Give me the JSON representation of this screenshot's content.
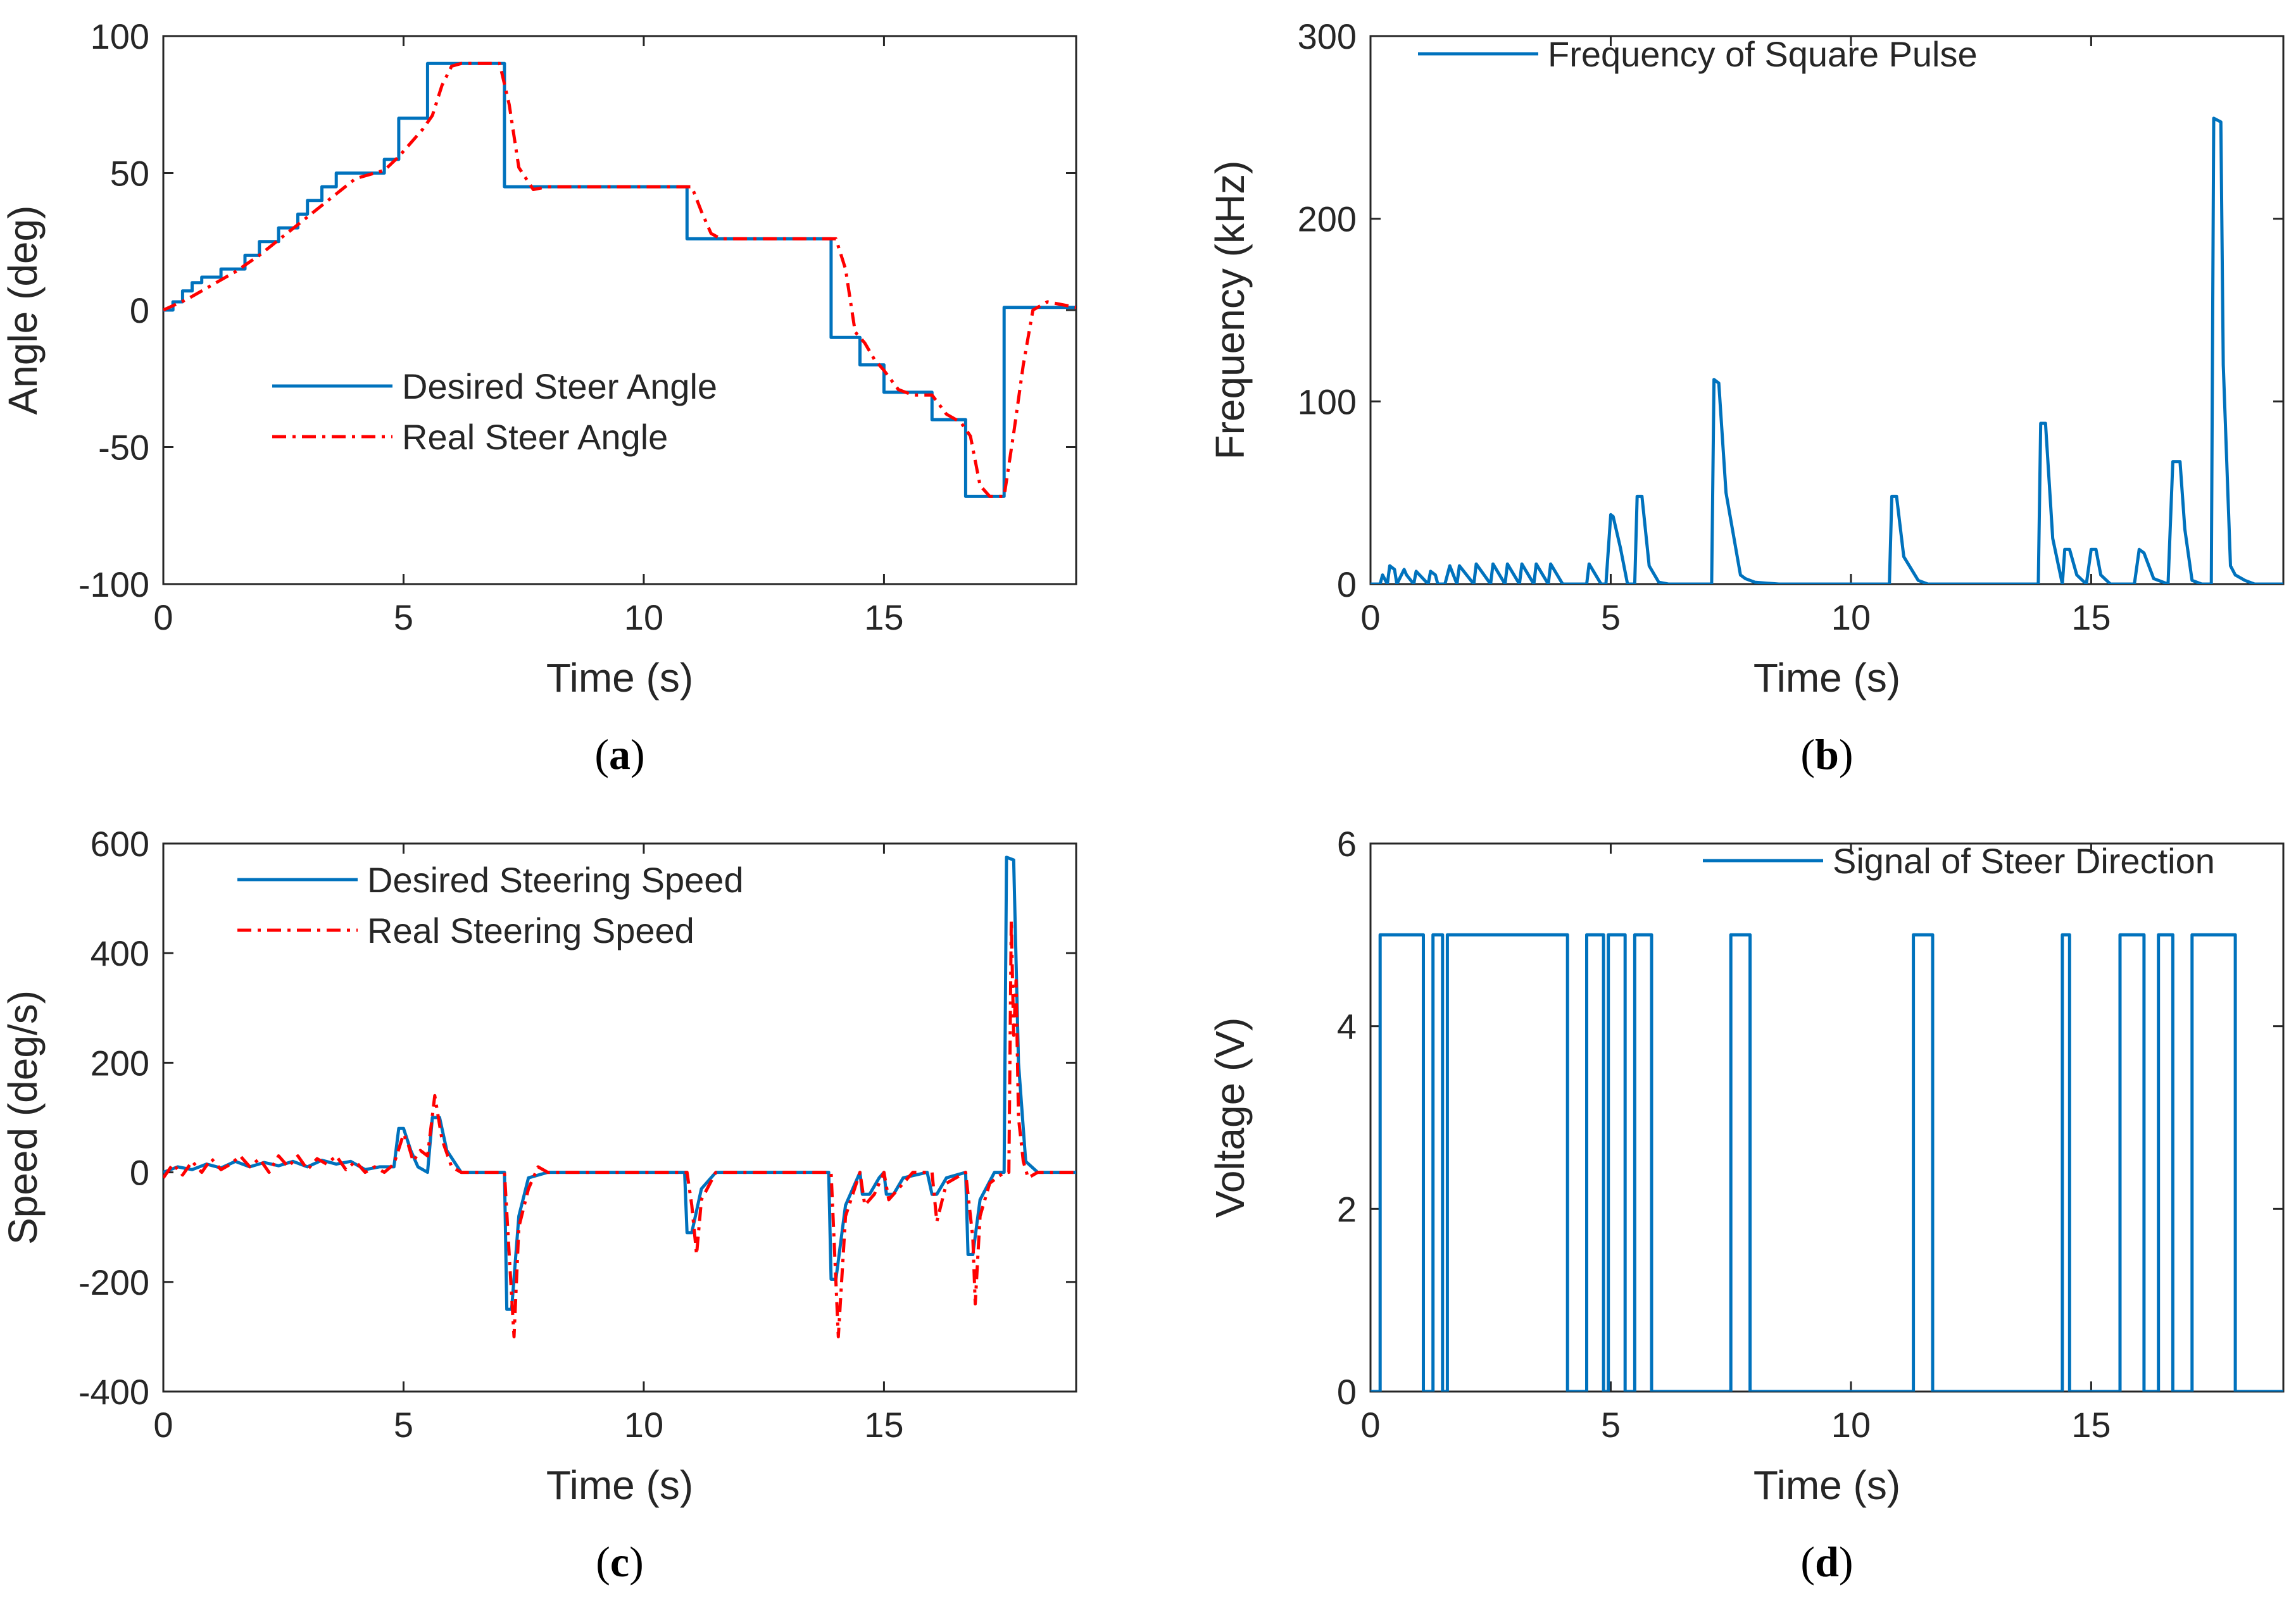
{
  "chart_data": [
    {
      "id": "a",
      "type": "line",
      "caption_letter": "a",
      "xlabel": "Time (s)",
      "ylabel": "Angle (deg)",
      "xlim": [
        0,
        19
      ],
      "ylim": [
        -100,
        100
      ],
      "xticks": [
        0,
        5,
        10,
        15
      ],
      "yticks": [
        -100,
        -50,
        0,
        50,
        100
      ],
      "legend_position": "lower-left",
      "series": [
        {
          "name": "Desired Steer Angle",
          "color": "#0072BD",
          "style": "solid",
          "x": [
            0,
            0.2,
            0.2,
            0.4,
            0.4,
            0.6,
            0.6,
            0.8,
            0.8,
            1.2,
            1.2,
            1.7,
            1.7,
            2.0,
            2.0,
            2.4,
            2.4,
            2.8,
            2.8,
            3.0,
            3.0,
            3.3,
            3.3,
            3.6,
            3.6,
            3.8,
            3.8,
            4.6,
            4.6,
            4.9,
            4.9,
            5.5,
            5.5,
            7.1,
            7.1,
            10.9,
            10.9,
            13.9,
            13.9,
            14.5,
            14.5,
            15.0,
            15.0,
            16.0,
            16.0,
            16.7,
            16.7,
            17.5,
            17.5,
            19.0
          ],
          "y": [
            0,
            0,
            3,
            3,
            7,
            7,
            10,
            10,
            12,
            12,
            15,
            15,
            20,
            20,
            25,
            25,
            30,
            30,
            35,
            35,
            40,
            40,
            45,
            45,
            50,
            50,
            50,
            50,
            55,
            55,
            70,
            70,
            90,
            90,
            45,
            45,
            26,
            26,
            -10,
            -10,
            -20,
            -20,
            -30,
            -30,
            -40,
            -40,
            -68,
            -68,
            1,
            1
          ]
        },
        {
          "name": "Real Steer Angle",
          "color": "#FF0000",
          "style": "dashdot",
          "x": [
            0,
            0.5,
            1.0,
            1.5,
            2.0,
            2.5,
            3.0,
            3.5,
            4.0,
            4.6,
            4.9,
            5.1,
            5.4,
            5.6,
            5.8,
            6.0,
            6.2,
            7.0,
            7.2,
            7.4,
            7.7,
            8.0,
            11.0,
            11.2,
            11.4,
            11.6,
            12.0,
            14.0,
            14.2,
            14.4,
            14.6,
            14.8,
            15.0,
            15.3,
            15.6,
            16.0,
            16.3,
            16.6,
            16.8,
            17.0,
            17.2,
            17.5,
            17.7,
            17.9,
            18.1,
            18.4,
            19.0
          ],
          "y": [
            0,
            4,
            9,
            14,
            20,
            27,
            34,
            41,
            48,
            51,
            56,
            60,
            66,
            71,
            82,
            89,
            90,
            90,
            75,
            52,
            44,
            45,
            45,
            36,
            28,
            26,
            26,
            26,
            15,
            -8,
            -12,
            -18,
            -22,
            -29,
            -31,
            -31,
            -38,
            -41,
            -46,
            -64,
            -68,
            -68,
            -45,
            -20,
            0,
            3,
            1
          ]
        }
      ]
    },
    {
      "id": "b",
      "type": "line",
      "caption_letter": "b",
      "xlabel": "Time (s)",
      "ylabel": "Frequency (kHz)",
      "xlim": [
        0,
        19
      ],
      "ylim": [
        0,
        300
      ],
      "xticks": [
        0,
        5,
        10,
        15
      ],
      "yticks": [
        0,
        100,
        200,
        300
      ],
      "legend_position": "top-left",
      "series": [
        {
          "name": "Frequency of Square Pulse",
          "color": "#0072BD",
          "style": "solid",
          "x": [
            0,
            0.2,
            0.25,
            0.35,
            0.4,
            0.5,
            0.55,
            0.7,
            0.75,
            0.9,
            0.95,
            1.2,
            1.25,
            1.35,
            1.4,
            1.55,
            1.65,
            1.8,
            1.85,
            2.15,
            2.2,
            2.5,
            2.55,
            2.8,
            2.85,
            3.1,
            3.15,
            3.4,
            3.45,
            3.7,
            3.75,
            4.0,
            4.1,
            4.5,
            4.55,
            4.8,
            4.9,
            5.0,
            5.05,
            5.2,
            5.35,
            5.5,
            5.55,
            5.65,
            5.8,
            6.0,
            6.2,
            7.1,
            7.15,
            7.25,
            7.4,
            7.7,
            7.8,
            8.0,
            8.5,
            10.8,
            10.85,
            10.95,
            11.1,
            11.4,
            11.6,
            13.9,
            13.95,
            14.05,
            14.2,
            14.4,
            14.45,
            14.55,
            14.7,
            14.9,
            15.0,
            15.1,
            15.2,
            15.4,
            15.5,
            15.9,
            16.0,
            16.1,
            16.3,
            16.6,
            16.7,
            16.85,
            16.95,
            17.1,
            17.3,
            17.5,
            17.55,
            17.7,
            17.75,
            17.9,
            18.0,
            18.2,
            18.4,
            19.0
          ],
          "y": [
            0,
            0,
            5,
            0,
            10,
            8,
            0,
            8,
            5,
            0,
            7,
            0,
            7,
            5,
            0,
            0,
            10,
            0,
            10,
            0,
            11,
            0,
            11,
            0,
            11,
            0,
            11,
            0,
            11,
            0,
            11,
            0,
            0,
            0,
            11,
            0,
            0,
            38,
            37,
            20,
            0,
            0,
            48,
            48,
            10,
            1,
            0,
            0,
            112,
            110,
            50,
            5,
            3,
            1,
            0,
            0,
            48,
            48,
            15,
            2,
            0,
            0,
            88,
            88,
            25,
            0,
            19,
            19,
            5,
            0,
            19,
            19,
            5,
            0,
            0,
            0,
            19,
            17,
            3,
            0,
            67,
            67,
            30,
            2,
            0,
            0,
            255,
            253,
            120,
            10,
            5,
            2,
            0,
            0
          ]
        }
      ]
    },
    {
      "id": "c",
      "type": "line",
      "caption_letter": "c",
      "xlabel": "Time (s)",
      "ylabel": "Speed (deg/s)",
      "xlim": [
        0,
        19
      ],
      "ylim": [
        -400,
        600
      ],
      "xticks": [
        0,
        5,
        10,
        15
      ],
      "yticks": [
        -400,
        -200,
        0,
        200,
        400,
        600
      ],
      "legend_position": "top-left",
      "series": [
        {
          "name": "Desired Steering Speed",
          "color": "#0072BD",
          "style": "solid",
          "x": [
            0,
            0.3,
            0.6,
            0.9,
            1.2,
            1.5,
            1.8,
            2.1,
            2.4,
            2.7,
            3.0,
            3.3,
            3.6,
            3.9,
            4.2,
            4.5,
            4.8,
            4.9,
            5.0,
            5.15,
            5.3,
            5.5,
            5.6,
            5.75,
            5.9,
            6.2,
            7.1,
            7.15,
            7.25,
            7.4,
            7.6,
            8.0,
            10.85,
            10.9,
            11.0,
            11.2,
            11.5,
            13.85,
            13.9,
            14.0,
            14.2,
            14.5,
            14.55,
            14.7,
            14.9,
            15.0,
            15.05,
            15.2,
            15.4,
            15.9,
            16.0,
            16.1,
            16.3,
            16.7,
            16.75,
            16.85,
            17.0,
            17.3,
            17.5,
            17.55,
            17.7,
            17.8,
            17.95,
            18.2,
            19.0
          ],
          "y": [
            0,
            10,
            5,
            15,
            8,
            20,
            10,
            18,
            12,
            20,
            10,
            22,
            15,
            20,
            5,
            10,
            10,
            80,
            80,
            40,
            10,
            0,
            100,
            100,
            40,
            0,
            0,
            -250,
            -250,
            -80,
            -10,
            0,
            0,
            -110,
            -110,
            -30,
            0,
            0,
            -195,
            -195,
            -60,
            0,
            -40,
            -40,
            -10,
            0,
            -40,
            -40,
            -10,
            0,
            -40,
            -40,
            -10,
            0,
            -150,
            -150,
            -50,
            0,
            0,
            575,
            570,
            200,
            20,
            0,
            0
          ]
        },
        {
          "name": "Real Steering Speed",
          "color": "#FF0000",
          "style": "dashdot",
          "x": [
            0,
            0.2,
            0.4,
            0.6,
            0.8,
            1.0,
            1.2,
            1.4,
            1.6,
            1.8,
            2.0,
            2.2,
            2.4,
            2.6,
            2.8,
            3.0,
            3.2,
            3.4,
            3.6,
            3.8,
            4.0,
            4.2,
            4.4,
            4.6,
            4.8,
            5.0,
            5.1,
            5.2,
            5.35,
            5.5,
            5.65,
            5.8,
            6.0,
            6.2,
            7.1,
            7.2,
            7.3,
            7.4,
            7.6,
            7.8,
            8.0,
            10.9,
            11.0,
            11.1,
            11.2,
            11.5,
            13.9,
            14.0,
            14.05,
            14.2,
            14.5,
            14.6,
            14.8,
            15.0,
            15.1,
            15.3,
            15.6,
            16.0,
            16.1,
            16.3,
            16.7,
            16.85,
            16.9,
            17.0,
            17.2,
            17.5,
            17.6,
            17.65,
            17.7,
            17.75,
            17.8,
            17.9,
            18.0,
            18.2,
            19.0
          ],
          "y": [
            -10,
            15,
            -5,
            20,
            0,
            25,
            5,
            15,
            30,
            10,
            25,
            0,
            30,
            10,
            30,
            5,
            25,
            15,
            30,
            5,
            20,
            0,
            10,
            0,
            15,
            70,
            50,
            20,
            40,
            30,
            140,
            60,
            10,
            0,
            0,
            -150,
            -300,
            -100,
            -30,
            10,
            0,
            0,
            -60,
            -150,
            -50,
            0,
            0,
            -200,
            -300,
            -80,
            0,
            -60,
            -40,
            0,
            -50,
            -30,
            0,
            0,
            -90,
            -20,
            0,
            -120,
            -240,
            -80,
            -20,
            0,
            0,
            460,
            250,
            350,
            100,
            20,
            -10,
            0,
            0
          ]
        }
      ]
    },
    {
      "id": "d",
      "type": "line",
      "caption_letter": "d",
      "xlabel": "Time (s)",
      "ylabel": "Voltage (V)",
      "xlim": [
        0,
        19
      ],
      "ylim": [
        0,
        6
      ],
      "xticks": [
        0,
        5,
        10,
        15
      ],
      "yticks": [
        0,
        2,
        4,
        6
      ],
      "legend_position": "top-right",
      "series": [
        {
          "name": "Signal of Steer Direction",
          "color": "#0072BD",
          "style": "solid",
          "x": [
            0,
            0.2,
            0.2,
            1.1,
            1.1,
            1.3,
            1.3,
            1.5,
            1.5,
            1.6,
            1.6,
            1.9,
            1.9,
            4.1,
            4.1,
            4.5,
            4.5,
            4.85,
            4.85,
            4.95,
            4.95,
            5.3,
            5.3,
            5.5,
            5.5,
            5.85,
            5.85,
            7.5,
            7.5,
            7.9,
            7.9,
            11.3,
            11.3,
            11.7,
            11.7,
            14.4,
            14.4,
            14.55,
            14.55,
            15.6,
            15.6,
            16.1,
            16.1,
            16.4,
            16.4,
            16.7,
            16.7,
            17.1,
            17.1,
            18.0,
            18.0,
            19.0
          ],
          "y": [
            0,
            0,
            5,
            5,
            0,
            0,
            5,
            5,
            0,
            0,
            5,
            5,
            5,
            5,
            0,
            0,
            5,
            5,
            0,
            0,
            5,
            5,
            0,
            0,
            5,
            5,
            0,
            0,
            5,
            5,
            0,
            0,
            5,
            5,
            0,
            0,
            5,
            5,
            0,
            0,
            5,
            5,
            0,
            0,
            5,
            5,
            0,
            0,
            5,
            5,
            0,
            0
          ]
        }
      ]
    }
  ]
}
